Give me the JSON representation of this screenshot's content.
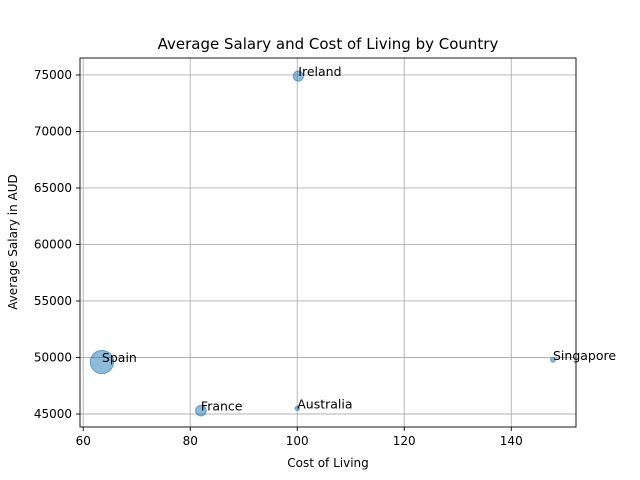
{
  "chart_data": {
    "type": "scatter",
    "title": "Average Salary and Cost of Living by Country",
    "xlabel": "Cost of Living",
    "ylabel": "Average Salary in AUD",
    "xlim": [
      59.4,
      152.1
    ],
    "ylim": [
      43850,
      76500
    ],
    "xticks": [
      60,
      80,
      100,
      120,
      140
    ],
    "yticks": [
      45000,
      50000,
      55000,
      60000,
      65000,
      70000,
      75000
    ],
    "grid": true,
    "bubble_color": "#1f77b4",
    "points": [
      {
        "label": "Australia",
        "x": 100.0,
        "y": 45500,
        "size": 1.2
      },
      {
        "label": "Singapore",
        "x": 147.8,
        "y": 49800,
        "size": 1.5
      },
      {
        "label": "Ireland",
        "x": 100.2,
        "y": 74900,
        "size": 6.5
      },
      {
        "label": "France",
        "x": 82.0,
        "y": 45300,
        "size": 7.0
      },
      {
        "label": "Spain",
        "x": 63.5,
        "y": 49600,
        "size": 34.0
      }
    ]
  }
}
